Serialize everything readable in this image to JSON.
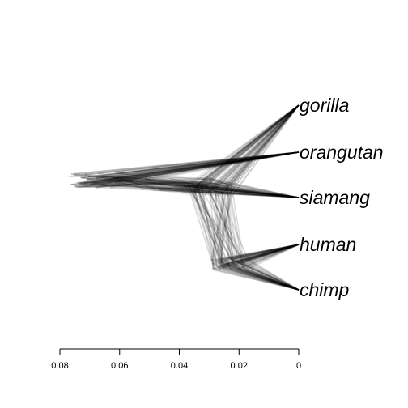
{
  "chart_data": {
    "type": "densitree",
    "taxa": [
      "gorilla",
      "orangutan",
      "siamang",
      "human",
      "chimp"
    ],
    "line_color": "#000000",
    "x_axis": {
      "reversed": true,
      "ticks": [
        0.08,
        0.06,
        0.04,
        0.02,
        0
      ],
      "tick_labels": [
        "0.08",
        "0.06",
        "0.04",
        "0.02",
        "0"
      ],
      "range": [
        0.08,
        0
      ]
    },
    "root_height_range": [
      0.06,
      0.077
    ],
    "human_chimp_split_height_range": [
      0.017,
      0.03
    ]
  }
}
